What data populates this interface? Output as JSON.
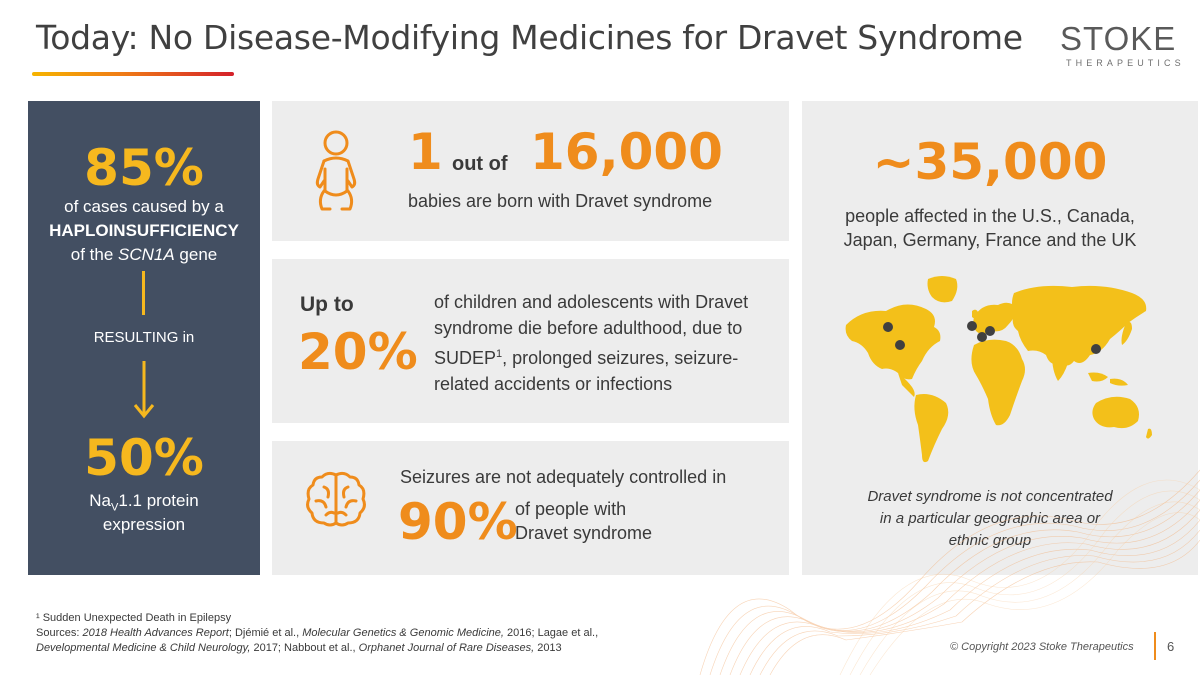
{
  "title": "Today: No Disease-Modifying Medicines for Dravet Syndrome",
  "logo": {
    "wordmark": "STOKE",
    "tagline": "THERAPEUTICS"
  },
  "left_panel": {
    "stat1": "85%",
    "line1": "of cases caused by a",
    "line2": "HAPLOINSUFFICIENCY",
    "line3_pre": "of the ",
    "line3_gene": "SCN1A",
    "line3_post": " gene",
    "resulting": "RESULTING in",
    "stat2": "50%",
    "protein_pre": "Na",
    "protein_sub": "V",
    "protein_post": "1.1 protein",
    "expression": "expression"
  },
  "card1": {
    "one": "1",
    "out_of": "out of",
    "number": "16,000",
    "text": "babies are born with Dravet syndrome"
  },
  "card2": {
    "up_to": "Up to",
    "percent": "20%",
    "line1": "of children and adolescents with Dravet",
    "line2": "syndrome die before adulthood, due to",
    "line3_pre": "SUDEP",
    "line3_sup": "1",
    "line3_post": ", prolonged seizures, seizure-",
    "line4": "related accidents or infections"
  },
  "card3": {
    "top": "Seizures are not adequately controlled in",
    "percent": "90%",
    "line1": "of people with",
    "line2": "Dravet syndrome"
  },
  "card4": {
    "number": "~35,000",
    "line1": "people affected in the U.S., Canada,",
    "line2": "Japan, Germany, France and the UK",
    "note1": "Dravet syndrome is not concentrated",
    "note2": "in a particular geographic area or",
    "note3": "ethnic group"
  },
  "footnotes": {
    "f1": "¹ Sudden Unexpected Death in Epilepsy",
    "f2_parts": [
      "Sources: ",
      "2018 Health Advances Report",
      "; Djémié et al., ",
      "Molecular Genetics & Genomic Medicine,",
      " 2016; Lagae et al.,"
    ],
    "f3_parts": [
      "Developmental Medicine & Child Neurology,",
      " 2017; Nabbout et al., ",
      "Orphanet Journal of Rare Diseases,",
      " 2013"
    ]
  },
  "copyright": "© Copyright 2023 Stoke Therapeutics",
  "page_number": "6",
  "colors": {
    "panel": "#434f62",
    "card": "#ededed",
    "accent_orange": "#ef8c1c",
    "accent_yellow": "#f6b81e",
    "map_yellow": "#f3c01a"
  },
  "icons": [
    "baby-icon",
    "brain-icon",
    "down-arrow-icon",
    "world-map"
  ]
}
